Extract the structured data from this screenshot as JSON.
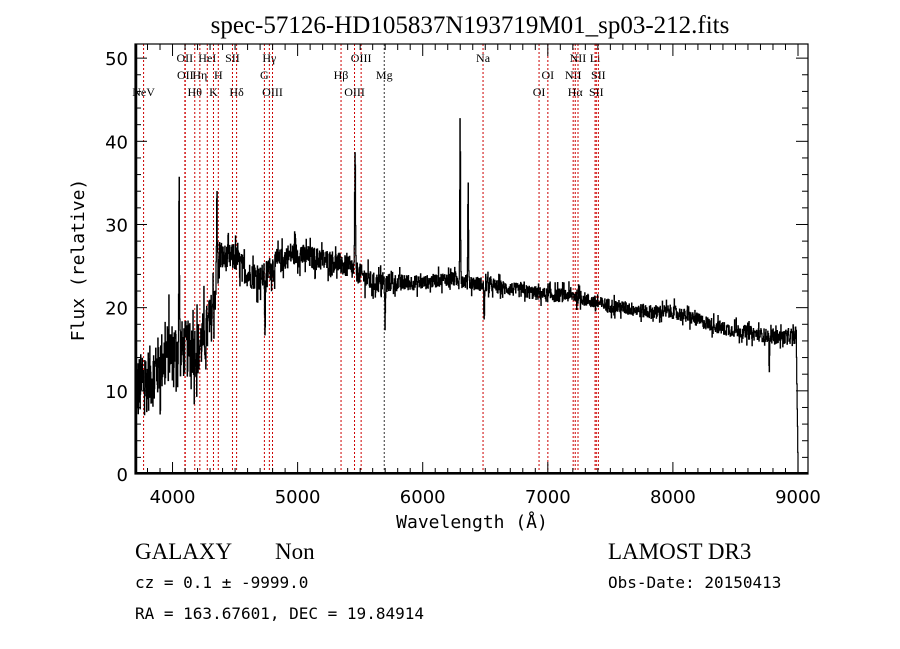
{
  "chart_data": {
    "type": "line",
    "title": "spec-57126-HD105837N193719M01_sp03-212.fits",
    "xlabel": "Wavelength (Å)",
    "ylabel": "Flux (relative)",
    "xlim": [
      3700,
      9080
    ],
    "ylim": [
      0,
      51.7
    ],
    "xticks": [
      4000,
      5000,
      6000,
      7000,
      8000,
      9000
    ],
    "yticks": [
      0,
      10,
      20,
      30,
      40,
      50
    ],
    "redshift": 0.1,
    "continuum": [
      [
        3700,
        10
      ],
      [
        3850,
        12
      ],
      [
        3950,
        14.5
      ],
      [
        4050,
        15
      ],
      [
        4200,
        15
      ],
      [
        4300,
        18
      ],
      [
        4380,
        26
      ],
      [
        4500,
        26
      ],
      [
        4600,
        24
      ],
      [
        4700,
        23.5
      ],
      [
        4800,
        25
      ],
      [
        4950,
        26.5
      ],
      [
        5100,
        26
      ],
      [
        5300,
        25.5
      ],
      [
        5450,
        24.5
      ],
      [
        5600,
        23
      ],
      [
        5800,
        23
      ],
      [
        6000,
        23
      ],
      [
        6200,
        23.5
      ],
      [
        6400,
        23
      ],
      [
        6600,
        22.5
      ],
      [
        6800,
        22
      ],
      [
        7000,
        21.5
      ],
      [
        7200,
        21.5
      ],
      [
        7400,
        20.5
      ],
      [
        7600,
        20
      ],
      [
        7800,
        19.5
      ],
      [
        8000,
        19.5
      ],
      [
        8200,
        18.5
      ],
      [
        8400,
        17.5
      ],
      [
        8600,
        17
      ],
      [
        8800,
        16.5
      ],
      [
        8985,
        16.5
      ],
      [
        9000,
        0
      ]
    ],
    "features": [
      [
        4052,
        35
      ],
      [
        4354,
        34
      ],
      [
        4978,
        29
      ],
      [
        5458,
        39.5
      ],
      [
        6298,
        43
      ],
      [
        6362,
        35
      ],
      [
        4738,
        17
      ],
      [
        5698,
        18
      ],
      [
        6490,
        18
      ],
      [
        8770,
        12.5
      ]
    ],
    "noise": [
      [
        3700,
        5
      ],
      [
        4300,
        4
      ],
      [
        4400,
        2
      ],
      [
        5600,
        1.5
      ],
      [
        6000,
        1
      ],
      [
        9000,
        1
      ]
    ],
    "lines": [
      {
        "label": "NeV",
        "rest": 3426,
        "row": 3,
        "color": "#cc0000"
      },
      {
        "label": "OII",
        "rest": 3726,
        "row": 1,
        "color": "#cc0000"
      },
      {
        "label": "OII",
        "rest": 3729,
        "row": 2,
        "color": "#cc0000"
      },
      {
        "label": "Hθ",
        "rest": 3798,
        "row": 3,
        "color": "#cc0000"
      },
      {
        "label": "Hη",
        "rest": 3835,
        "row": 2,
        "color": "#cc0000"
      },
      {
        "label": "HeI",
        "rest": 3889,
        "row": 1,
        "color": "#cc0000"
      },
      {
        "label": "K",
        "rest": 3934,
        "row": 3,
        "color": "#cc0000"
      },
      {
        "label": "H",
        "rest": 3969,
        "row": 2,
        "color": "#cc0000"
      },
      {
        "label": "SII",
        "rest": 4072,
        "row": 1,
        "color": "#cc0000"
      },
      {
        "label": "Hδ",
        "rest": 4102,
        "row": 3,
        "color": "#cc0000"
      },
      {
        "label": "G",
        "rest": 4304,
        "row": 2,
        "color": "#cc0000"
      },
      {
        "label": "Hγ",
        "rest": 4340,
        "row": 1,
        "color": "#cc0000"
      },
      {
        "label": "OIII",
        "rest": 4363,
        "row": 3,
        "color": "#cc0000"
      },
      {
        "label": "Hβ",
        "rest": 4861,
        "row": 2,
        "color": "#cc0000"
      },
      {
        "label": "OIII",
        "rest": 4959,
        "row": 3,
        "color": "#cc0000"
      },
      {
        "label": "OIII",
        "rest": 5007,
        "row": 1,
        "color": "#cc0000"
      },
      {
        "label": "Mg",
        "rest": 5175,
        "row": 2,
        "color": "#333333"
      },
      {
        "label": "Na",
        "rest": 5893,
        "row": 1,
        "color": "#cc0000"
      },
      {
        "label": "OI",
        "rest": 6300,
        "row": 3,
        "color": "#cc0000"
      },
      {
        "label": "OI",
        "rest": 6364,
        "row": 2,
        "color": "#cc0000"
      },
      {
        "label": "NII",
        "rest": 6548,
        "row": 2,
        "color": "#cc0000"
      },
      {
        "label": "Hα",
        "rest": 6563,
        "row": 3,
        "color": "#cc0000"
      },
      {
        "label": "NII",
        "rest": 6583,
        "row": 1,
        "color": "#cc0000"
      },
      {
        "label": "Li",
        "rest": 6707,
        "row": 1,
        "color": "#cc0000"
      },
      {
        "label": "SII",
        "rest": 6716,
        "row": 3,
        "color": "#cc0000"
      },
      {
        "label": "SII",
        "rest": 6731,
        "row": 2,
        "color": "#cc0000"
      }
    ]
  },
  "footer": {
    "class_label": "GALAXY",
    "subclass_label": "Non",
    "cz_text": "cz = 0.1 ± -9999.0",
    "coords_text": "RA = 163.67601, DEC =  19.84914",
    "survey": "LAMOST DR3",
    "obs_date": "Obs-Date: 20150413"
  },
  "colors": {
    "line_mark": "#cc0000",
    "spectrum": "#000000"
  }
}
